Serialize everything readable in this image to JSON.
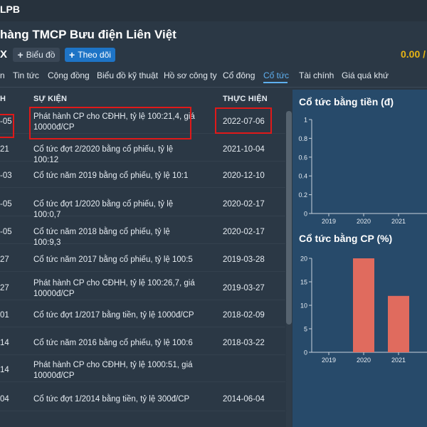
{
  "header": {
    "symbol": "LPB",
    "company": "hàng TMCP Bưu điện Liên Việt",
    "exchange_fragment": "X",
    "chart_button": "Biểu đồ",
    "follow_button": "Theo dõi",
    "price": "0.00 /"
  },
  "tabs": [
    {
      "label": "n"
    },
    {
      "label": "Tin tức"
    },
    {
      "label": "Cộng đồng"
    },
    {
      "label": "Biểu đồ kỹ thuật"
    },
    {
      "label": "Hồ sơ công ty"
    },
    {
      "label": "Cổ đông"
    },
    {
      "label": "Cổ tức",
      "active": true
    },
    {
      "label": "Tài chính"
    },
    {
      "label": "Giá quá khứ"
    }
  ],
  "table": {
    "headers": {
      "date": "H",
      "event": "SỰ KIỆN",
      "exec": "THỰC HIỆN"
    },
    "rows": [
      {
        "date": "-05",
        "event": "Phát hành CP cho CĐHH, tỷ lệ 100:21,4, giá 10000đ/CP",
        "exec": "2022-07-06"
      },
      {
        "date": "21",
        "event": "Cổ tức đợt 2/2020 bằng cổ phiếu, tỷ lệ 100:12",
        "exec": "2021-10-04"
      },
      {
        "date": "-03",
        "event": "Cổ tức năm 2019 bằng cổ phiếu, tỷ lệ 10:1",
        "exec": "2020-12-10"
      },
      {
        "date": "-05",
        "event": "Cổ tức đợt 1/2020 bằng cổ phiếu, tỷ lệ 100:0,7",
        "exec": "2020-02-17"
      },
      {
        "date": "-05",
        "event": "Cổ tức năm 2018 bằng cổ phiếu, tỷ lệ 100:9,3",
        "exec": "2020-02-17"
      },
      {
        "date": "27",
        "event": "Cổ tức năm 2017 bằng cổ phiếu, tỷ lệ 100:5",
        "exec": "2019-03-28"
      },
      {
        "date": "27",
        "event": "Phát hành CP cho CĐHH, tỷ lệ 100:26,7, giá 10000đ/CP",
        "exec": "2019-03-27"
      },
      {
        "date": "01",
        "event": "Cổ tức đợt 1/2017 bằng tiền, tỷ lệ 1000đ/CP",
        "exec": "2018-02-09"
      },
      {
        "date": "14",
        "event": "Cổ tức năm 2016 bằng cổ phiếu, tỷ lệ 100:6",
        "exec": "2018-03-22"
      },
      {
        "date": "14",
        "event": "Phát hành CP cho CĐHH, tỷ lệ 1000:51, giá 10000đ/CP",
        "exec": ""
      },
      {
        "date": "04",
        "event": "Cổ tức đợt 1/2014 bằng tiền, tỷ lệ 300đ/CP",
        "exec": "2014-06-04"
      }
    ]
  },
  "chart_data": [
    {
      "type": "bar",
      "title": "Cổ tức bằng tiền (đ)",
      "categories": [
        "2019",
        "2020",
        "2021"
      ],
      "series": [
        {
          "values": [
            0,
            0,
            0
          ]
        }
      ],
      "ylim": [
        0,
        1
      ],
      "yticks": [
        "0",
        "0.2",
        "0.4",
        "0.6",
        "0.8",
        "1"
      ],
      "color": "#e06b5e"
    },
    {
      "type": "bar",
      "title": "Cổ tức bằng CP (%)",
      "categories": [
        "2019",
        "2020",
        "2021"
      ],
      "series": [
        {
          "values": [
            0,
            20,
            12
          ]
        }
      ],
      "ylim": [
        0,
        20
      ],
      "yticks": [
        "0",
        "5",
        "10",
        "15",
        "20"
      ],
      "color": "#e06b5e"
    }
  ]
}
